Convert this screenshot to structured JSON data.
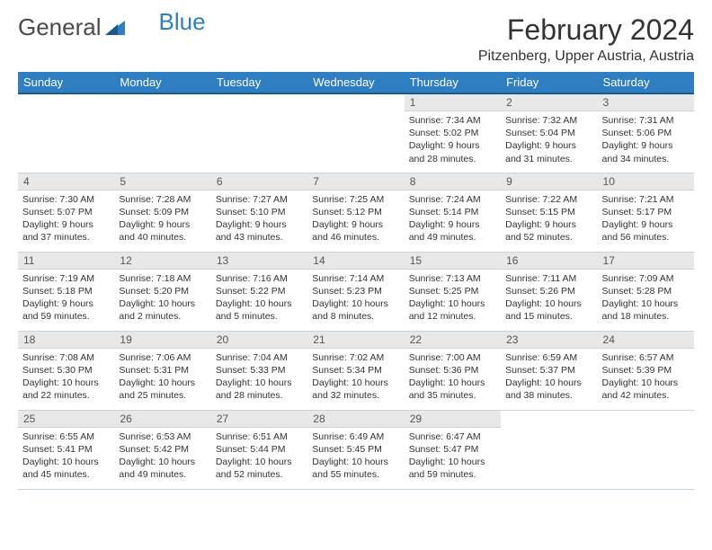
{
  "logo": {
    "text1": "General",
    "text2": "Blue"
  },
  "title": "February 2024",
  "location": "Pitzenberg, Upper Austria, Austria",
  "colors": {
    "header_bg": "#2f7ec2",
    "header_text": "#ffffff",
    "daynum_bg": "#e8e8e8"
  },
  "dayHeaders": [
    "Sunday",
    "Monday",
    "Tuesday",
    "Wednesday",
    "Thursday",
    "Friday",
    "Saturday"
  ],
  "weeks": [
    [
      null,
      null,
      null,
      null,
      {
        "n": "1",
        "sr": "7:34 AM",
        "ss": "5:02 PM",
        "dl": "9 hours and 28 minutes."
      },
      {
        "n": "2",
        "sr": "7:32 AM",
        "ss": "5:04 PM",
        "dl": "9 hours and 31 minutes."
      },
      {
        "n": "3",
        "sr": "7:31 AM",
        "ss": "5:06 PM",
        "dl": "9 hours and 34 minutes."
      }
    ],
    [
      {
        "n": "4",
        "sr": "7:30 AM",
        "ss": "5:07 PM",
        "dl": "9 hours and 37 minutes."
      },
      {
        "n": "5",
        "sr": "7:28 AM",
        "ss": "5:09 PM",
        "dl": "9 hours and 40 minutes."
      },
      {
        "n": "6",
        "sr": "7:27 AM",
        "ss": "5:10 PM",
        "dl": "9 hours and 43 minutes."
      },
      {
        "n": "7",
        "sr": "7:25 AM",
        "ss": "5:12 PM",
        "dl": "9 hours and 46 minutes."
      },
      {
        "n": "8",
        "sr": "7:24 AM",
        "ss": "5:14 PM",
        "dl": "9 hours and 49 minutes."
      },
      {
        "n": "9",
        "sr": "7:22 AM",
        "ss": "5:15 PM",
        "dl": "9 hours and 52 minutes."
      },
      {
        "n": "10",
        "sr": "7:21 AM",
        "ss": "5:17 PM",
        "dl": "9 hours and 56 minutes."
      }
    ],
    [
      {
        "n": "11",
        "sr": "7:19 AM",
        "ss": "5:18 PM",
        "dl": "9 hours and 59 minutes."
      },
      {
        "n": "12",
        "sr": "7:18 AM",
        "ss": "5:20 PM",
        "dl": "10 hours and 2 minutes."
      },
      {
        "n": "13",
        "sr": "7:16 AM",
        "ss": "5:22 PM",
        "dl": "10 hours and 5 minutes."
      },
      {
        "n": "14",
        "sr": "7:14 AM",
        "ss": "5:23 PM",
        "dl": "10 hours and 8 minutes."
      },
      {
        "n": "15",
        "sr": "7:13 AM",
        "ss": "5:25 PM",
        "dl": "10 hours and 12 minutes."
      },
      {
        "n": "16",
        "sr": "7:11 AM",
        "ss": "5:26 PM",
        "dl": "10 hours and 15 minutes."
      },
      {
        "n": "17",
        "sr": "7:09 AM",
        "ss": "5:28 PM",
        "dl": "10 hours and 18 minutes."
      }
    ],
    [
      {
        "n": "18",
        "sr": "7:08 AM",
        "ss": "5:30 PM",
        "dl": "10 hours and 22 minutes."
      },
      {
        "n": "19",
        "sr": "7:06 AM",
        "ss": "5:31 PM",
        "dl": "10 hours and 25 minutes."
      },
      {
        "n": "20",
        "sr": "7:04 AM",
        "ss": "5:33 PM",
        "dl": "10 hours and 28 minutes."
      },
      {
        "n": "21",
        "sr": "7:02 AM",
        "ss": "5:34 PM",
        "dl": "10 hours and 32 minutes."
      },
      {
        "n": "22",
        "sr": "7:00 AM",
        "ss": "5:36 PM",
        "dl": "10 hours and 35 minutes."
      },
      {
        "n": "23",
        "sr": "6:59 AM",
        "ss": "5:37 PM",
        "dl": "10 hours and 38 minutes."
      },
      {
        "n": "24",
        "sr": "6:57 AM",
        "ss": "5:39 PM",
        "dl": "10 hours and 42 minutes."
      }
    ],
    [
      {
        "n": "25",
        "sr": "6:55 AM",
        "ss": "5:41 PM",
        "dl": "10 hours and 45 minutes."
      },
      {
        "n": "26",
        "sr": "6:53 AM",
        "ss": "5:42 PM",
        "dl": "10 hours and 49 minutes."
      },
      {
        "n": "27",
        "sr": "6:51 AM",
        "ss": "5:44 PM",
        "dl": "10 hours and 52 minutes."
      },
      {
        "n": "28",
        "sr": "6:49 AM",
        "ss": "5:45 PM",
        "dl": "10 hours and 55 minutes."
      },
      {
        "n": "29",
        "sr": "6:47 AM",
        "ss": "5:47 PM",
        "dl": "10 hours and 59 minutes."
      },
      null,
      null
    ]
  ],
  "labels": {
    "sunrise": "Sunrise: ",
    "sunset": "Sunset: ",
    "daylight": "Daylight: "
  }
}
